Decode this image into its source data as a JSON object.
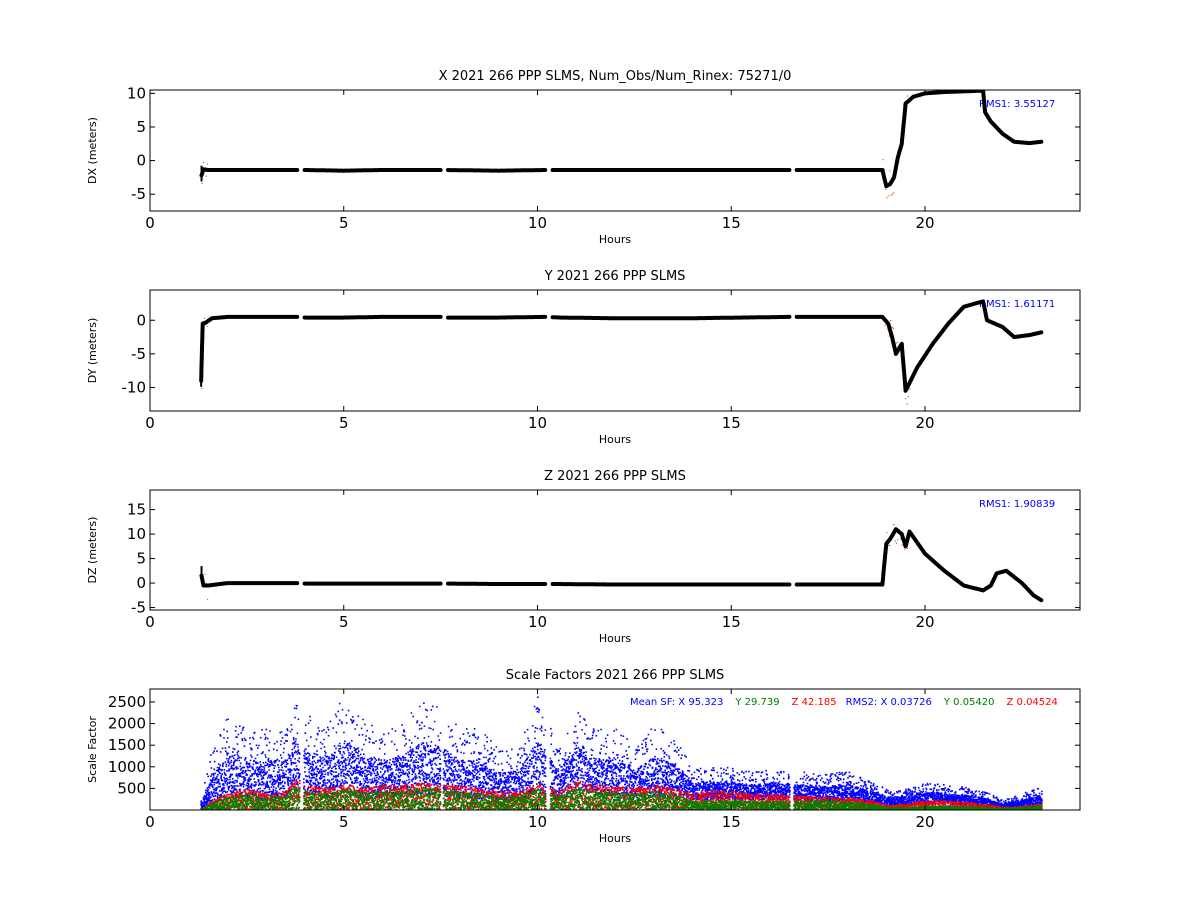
{
  "colors": {
    "position_trace": "#000000",
    "position_scatter": "#d2691e",
    "rms_text": "#0000ff",
    "sf_x": "#0000ff",
    "sf_y": "#008000",
    "sf_z": "#ff0000"
  },
  "chart_data": [
    {
      "type": "scatter",
      "title": "X 2021 266 PPP  SLMS, Num_Obs/Num_Rinex: 75271/0",
      "xlabel": "Hours",
      "ylabel": "DX (meters)",
      "xlim": [
        0,
        24
      ],
      "ylim": [
        -7.5,
        10.5
      ],
      "xticks": [
        "0",
        "5",
        "10",
        "15",
        "20"
      ],
      "yticks": [
        "10",
        "5",
        "0",
        "-5"
      ],
      "annotation": "RMS1:  3.55127",
      "grid": false,
      "series": [
        {
          "x": [
            1.33,
            1.38,
            1.5,
            2,
            3,
            3.8,
            4,
            5,
            6,
            7,
            7.5,
            7.6,
            9,
            10.2,
            10.6,
            12,
            14,
            16.5,
            16.6,
            18,
            18.9,
            19.0,
            19.1,
            19.2,
            19.3,
            19.4,
            19.5,
            19.7,
            20,
            20.5,
            21,
            21.5,
            21.55,
            21.7,
            22,
            22.3,
            22.7,
            23.0
          ],
          "y": [
            -2.2,
            -1.3,
            -1.4,
            -1.4,
            -1.4,
            -1.4,
            -1.4,
            -1.5,
            -1.4,
            -1.4,
            -1.4,
            -1.4,
            -1.5,
            -1.4,
            -1.4,
            -1.4,
            -1.4,
            -1.4,
            -1.4,
            -1.4,
            -1.4,
            -3.8,
            -3.5,
            -2.5,
            0.5,
            2.5,
            8.5,
            9.5,
            10.0,
            10.2,
            10.3,
            10.4,
            7.2,
            5.8,
            4.0,
            2.8,
            2.6,
            2.8
          ],
          "gaps_after_x": [
            3.8,
            7.5,
            10.2,
            16.5
          ]
        }
      ]
    },
    {
      "type": "scatter",
      "title": "Y 2021 266 PPP  SLMS",
      "xlabel": "Hours",
      "ylabel": "DY (meters)",
      "xlim": [
        0,
        24
      ],
      "ylim": [
        -13.5,
        4.5
      ],
      "xticks": [
        "0",
        "5",
        "10",
        "15",
        "20"
      ],
      "yticks": [
        "0",
        "-5",
        "-10"
      ],
      "annotation": "RMS1:  1.61171",
      "grid": false,
      "series": [
        {
          "x": [
            1.32,
            1.36,
            1.45,
            1.6,
            2,
            3,
            3.8,
            4,
            5,
            6,
            7,
            7.5,
            7.6,
            9,
            10.2,
            10.6,
            12,
            14,
            16.5,
            16.6,
            18,
            18.9,
            19.05,
            19.15,
            19.25,
            19.4,
            19.5,
            19.8,
            20.2,
            20.6,
            21.0,
            21.3,
            21.5,
            21.6,
            22.0,
            22.3,
            22.7,
            23.0
          ],
          "y": [
            -9.0,
            -0.5,
            -0.3,
            0.3,
            0.5,
            0.5,
            0.5,
            0.4,
            0.4,
            0.5,
            0.5,
            0.5,
            0.4,
            0.4,
            0.5,
            0.4,
            0.3,
            0.3,
            0.5,
            0.5,
            0.5,
            0.5,
            -0.5,
            -2.5,
            -5.0,
            -3.5,
            -10.5,
            -7.0,
            -3.5,
            -0.5,
            2.0,
            2.5,
            2.8,
            0.0,
            -1.0,
            -2.5,
            -2.2,
            -1.8
          ],
          "gaps_after_x": [
            3.8,
            7.5,
            10.2,
            16.5
          ]
        }
      ]
    },
    {
      "type": "scatter",
      "title": "Z 2021 266 PPP  SLMS",
      "xlabel": "Hours",
      "ylabel": "DZ (meters)",
      "xlim": [
        0,
        24
      ],
      "ylim": [
        -5.5,
        19
      ],
      "xticks": [
        "0",
        "5",
        "10",
        "15",
        "20"
      ],
      "yticks": [
        "15",
        "10",
        "5",
        "0",
        "-5"
      ],
      "annotation": "RMS1:  1.90839",
      "grid": false,
      "series": [
        {
          "x": [
            1.33,
            1.38,
            1.5,
            2,
            3,
            3.8,
            4,
            5,
            6,
            7,
            7.5,
            7.6,
            9,
            10.2,
            10.6,
            12,
            14,
            16.5,
            16.6,
            18,
            18.9,
            19.0,
            19.1,
            19.25,
            19.4,
            19.5,
            19.6,
            20.0,
            20.5,
            21.0,
            21.5,
            21.7,
            21.85,
            22.1,
            22.5,
            22.8,
            23.0
          ],
          "y": [
            1.5,
            -0.5,
            -0.5,
            0,
            0,
            0,
            -0.1,
            -0.1,
            -0.1,
            -0.1,
            -0.1,
            -0.1,
            -0.2,
            -0.2,
            -0.2,
            -0.3,
            -0.3,
            -0.3,
            -0.3,
            -0.3,
            -0.3,
            8.0,
            9.0,
            11.0,
            10.0,
            7.5,
            10.5,
            6.0,
            2.5,
            -0.5,
            -1.5,
            -0.5,
            2.0,
            2.5,
            0.0,
            -2.5,
            -3.5
          ],
          "gaps_after_x": [
            3.8,
            7.5,
            10.2,
            16.5
          ]
        }
      ]
    },
    {
      "type": "scatter",
      "title": "Scale Factors 2021 266 PPP  SLMS",
      "xlabel": "Hours",
      "ylabel": "Scale Factor",
      "xlim": [
        0,
        24
      ],
      "ylim": [
        0,
        2800
      ],
      "xticks": [
        "0",
        "5",
        "10",
        "15",
        "20"
      ],
      "yticks": [
        "2500",
        "2000",
        "1500",
        "1000",
        "500"
      ],
      "legend_text": [
        {
          "label": "Mean SF: X  95.323",
          "color": "#0000ff"
        },
        {
          "label": "Y  29.739",
          "color": "#008000"
        },
        {
          "label": "Z  42.185",
          "color": "#ff0000"
        },
        {
          "label": "RMS2: X  0.03726",
          "color": "#0000ff"
        },
        {
          "label": "Y  0.05420",
          "color": "#008000"
        },
        {
          "label": "Z  0.04524",
          "color": "#ff0000"
        }
      ],
      "grid": false,
      "series": [
        {
          "name": "X",
          "x": [
            1.3,
            1.6,
            2.0,
            2.5,
            3.0,
            3.5,
            3.7,
            4.0,
            4.5,
            5.0,
            5.5,
            6.0,
            6.5,
            7.0,
            7.5,
            8.0,
            8.5,
            9.0,
            9.5,
            10.0,
            10.5,
            11.0,
            11.5,
            12.0,
            12.5,
            13.0,
            13.5,
            14.0,
            14.5,
            15.0,
            15.5,
            16.0,
            16.5,
            17.0,
            17.5,
            18.0,
            18.5,
            19.0,
            19.5,
            20.0,
            20.5,
            21.0,
            21.5,
            22.0,
            22.5,
            23.0
          ],
          "y": [
            50,
            500,
            800,
            950,
            700,
            800,
            1600,
            1100,
            900,
            1200,
            800,
            900,
            1000,
            1100,
            1000,
            850,
            800,
            600,
            700,
            1200,
            700,
            1400,
            1100,
            900,
            800,
            1000,
            900,
            700,
            750,
            750,
            700,
            750,
            700,
            650,
            600,
            650,
            550,
            350,
            300,
            450,
            450,
            400,
            300,
            150,
            250,
            400
          ],
          "max": [
            250,
            1500,
            2200,
            1900,
            1900,
            1900,
            2700,
            2300,
            1900,
            2700,
            2100,
            1900,
            2000,
            2600,
            2400,
            1900,
            1900,
            1400,
            1500,
            2700,
            1500,
            2300,
            1900,
            1900,
            1500,
            2000,
            1700,
            1000,
            1000,
            1000,
            900,
            950,
            900,
            900,
            850,
            950,
            700,
            500,
            500,
            650,
            600,
            550,
            450,
            250,
            400,
            550
          ]
        },
        {
          "name": "Z",
          "x": [
            1.3,
            1.6,
            2.0,
            2.5,
            3.0,
            3.5,
            3.7,
            4.0,
            4.5,
            5.0,
            5.5,
            6.0,
            6.5,
            7.0,
            7.5,
            8.0,
            8.5,
            9.0,
            9.5,
            10.0,
            10.5,
            11.0,
            11.5,
            12.0,
            12.5,
            13.0,
            13.5,
            14.0,
            14.5,
            15.0,
            15.5,
            16.0,
            16.5,
            17.0,
            17.5,
            18.0,
            18.5,
            19.0,
            19.5,
            20.0,
            20.5,
            21.0,
            21.5,
            22.0,
            22.5,
            23.0
          ],
          "y": [
            20,
            200,
            300,
            400,
            300,
            350,
            550,
            450,
            400,
            500,
            400,
            450,
            450,
            500,
            450,
            450,
            400,
            350,
            350,
            500,
            350,
            550,
            450,
            450,
            400,
            450,
            400,
            300,
            350,
            350,
            300,
            300,
            280,
            260,
            240,
            230,
            200,
            100,
            120,
            180,
            180,
            150,
            120,
            60,
            80,
            120
          ]
        },
        {
          "name": "Y",
          "x": [
            1.3,
            1.6,
            2.0,
            2.5,
            3.0,
            3.5,
            3.7,
            4.0,
            4.5,
            5.0,
            5.5,
            6.0,
            6.5,
            7.0,
            7.5,
            8.0,
            8.5,
            9.0,
            9.5,
            10.0,
            10.5,
            11.0,
            11.5,
            12.0,
            12.5,
            13.0,
            13.5,
            14.0,
            14.5,
            15.0,
            15.5,
            16.0,
            16.5,
            17.0,
            17.5,
            18.0,
            18.5,
            19.0,
            19.5,
            20.0,
            20.5,
            21.0,
            21.5,
            22.0,
            22.5,
            23.0
          ],
          "y": [
            10,
            150,
            250,
            300,
            230,
            270,
            450,
            350,
            300,
            400,
            320,
            350,
            350,
            420,
            380,
            330,
            300,
            260,
            260,
            400,
            260,
            400,
            330,
            330,
            300,
            350,
            300,
            170,
            180,
            180,
            170,
            170,
            160,
            180,
            170,
            160,
            140,
            60,
            60,
            80,
            80,
            70,
            60,
            40,
            60,
            90
          ]
        }
      ]
    }
  ]
}
